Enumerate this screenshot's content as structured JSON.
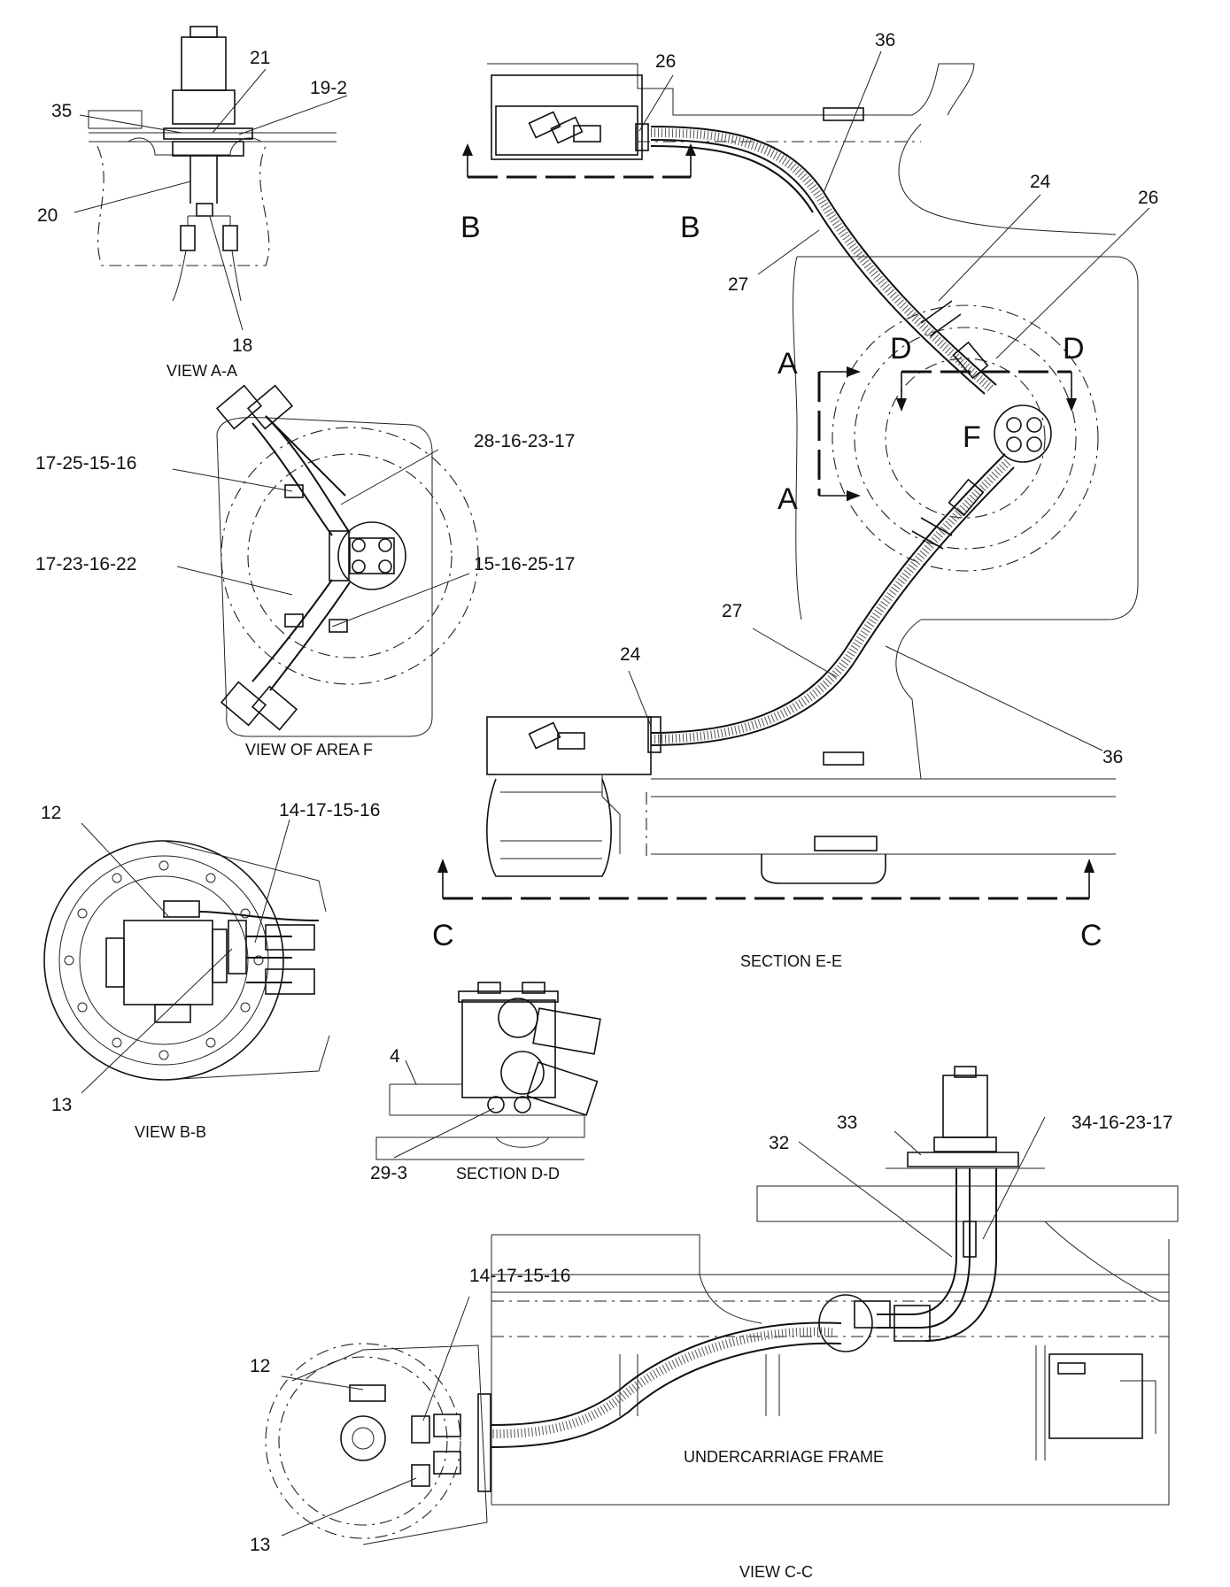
{
  "labels": {
    "view_aa_35": "35",
    "view_aa_21": "21",
    "view_aa_19_2": "19-2",
    "view_aa_20": "20",
    "view_aa_18": "18",
    "view_aa_caption": "VIEW A-A",
    "sec_ee_26_top": "26",
    "sec_ee_36_top": "36",
    "sec_ee_b_left": "B",
    "sec_ee_b_right": "B",
    "sec_ee_27_top": "27",
    "sec_ee_24_right": "24",
    "sec_ee_26_right": "26",
    "sec_ee_d_left": "D",
    "sec_ee_d_right": "D",
    "sec_ee_a_top": "A",
    "sec_ee_a_bottom": "A",
    "sec_ee_f": "F",
    "sec_ee_27_bottom": "27",
    "sec_ee_24_bottom": "24",
    "sec_ee_36_bottom": "36",
    "sec_ee_c_left": "C",
    "sec_ee_c_right": "C",
    "sec_ee_caption": "SECTION E-E",
    "area_f_17_25_15_16": "17-25-15-16",
    "area_f_28_16_23_17": "28-16-23-17",
    "area_f_17_23_16_22": "17-23-16-22",
    "area_f_15_16_25_17": "15-16-25-17",
    "area_f_caption": "VIEW OF AREA F",
    "view_bb_12": "12",
    "view_bb_14_17_15_16": "14-17-15-16",
    "view_bb_13": "13",
    "view_bb_caption": "VIEW B-B",
    "sec_dd_4": "4",
    "sec_dd_29_3": "29-3",
    "sec_dd_caption": "SECTION D-D",
    "view_cc_33": "33",
    "view_cc_34_16_23_17": "34-16-23-17",
    "view_cc_32": "32",
    "view_cc_14_17_15_16": "14-17-15-16",
    "view_cc_12": "12",
    "view_cc_13": "13",
    "view_cc_frame": "UNDERCARRIAGE FRAME",
    "view_cc_caption": "VIEW C-C"
  }
}
